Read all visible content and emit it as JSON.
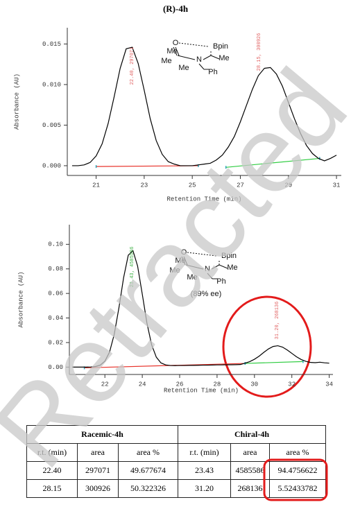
{
  "title": "(R)-4h",
  "watermark": "Retracted",
  "chart_data": [
    {
      "type": "line",
      "xlabel": "Retention Time (min)",
      "ylabel": "Absorbance (AU)",
      "xlim": [
        19.8,
        31.2
      ],
      "ylim": [
        -0.0012,
        0.017
      ],
      "xticks": [
        21,
        23,
        25,
        27,
        29,
        31
      ],
      "yticks": [
        {
          "value": 0,
          "label": "0.000"
        },
        0.005,
        {
          "value": 0.01,
          "label": "0.010"
        },
        0.015
      ],
      "x": [
        20,
        20.25,
        20.5,
        20.75,
        21,
        21.25,
        21.5,
        21.75,
        22,
        22.25,
        22.5,
        22.75,
        23,
        23.25,
        23.5,
        23.75,
        24,
        24.25,
        24.5,
        24.75,
        25,
        25.25,
        25.5,
        25.75,
        26,
        26.25,
        26.5,
        26.75,
        27,
        27.25,
        27.5,
        27.75,
        28,
        28.25,
        28.5,
        28.75,
        29,
        29.25,
        29.5,
        29.75,
        30,
        30.25,
        30.5,
        30.75,
        31
      ],
      "series": [
        {
          "color": "#000000",
          "values": [
            0,
            0,
            0.0001,
            0.0004,
            0.0012,
            0.0027,
            0.0052,
            0.0085,
            0.012,
            0.0144,
            0.0146,
            0.0126,
            0.0093,
            0.0058,
            0.0031,
            0.0014,
            0.0005,
            0.0002,
            0,
            0,
            0,
            0.0001,
            0.0002,
            0.0003,
            0.0007,
            0.0013,
            0.0023,
            0.0036,
            0.0054,
            0.0074,
            0.0094,
            0.0111,
            0.012,
            0.0121,
            0.0113,
            0.0098,
            0.0078,
            0.0058,
            0.004,
            0.0025,
            0.0015,
            0.0009,
            0.0006,
            0.0009,
            0.0013
          ]
        }
      ],
      "baselines": [
        {
          "color": "#e8322a",
          "x": [
            21,
            25.25
          ],
          "values": [
            -0.0001,
            0
          ]
        },
        {
          "color": "#2ecc40",
          "x": [
            26.4,
            30.3
          ],
          "values": [
            -0.0002,
            0.0009
          ]
        }
      ],
      "annotations": [
        {
          "text": "22.40, 297071",
          "color": "#e06060"
        },
        {
          "text": "28.15, 300926",
          "color": "#e06060"
        }
      ]
    },
    {
      "type": "line",
      "xlabel": "Retention Time (min)",
      "ylabel": "Absorbance (AU)",
      "xlim": [
        20.1,
        34.2
      ],
      "ylim": [
        -0.006,
        0.116
      ],
      "xticks": [
        22,
        24,
        26,
        28,
        30,
        32,
        34
      ],
      "yticks": [
        {
          "value": 0,
          "label": "0.00"
        },
        0.02,
        0.04,
        0.06,
        0.08,
        {
          "value": 0.1,
          "label": "0.10"
        }
      ],
      "x": [
        20.25,
        20.5,
        20.75,
        21,
        21.25,
        21.5,
        21.75,
        22,
        22.25,
        22.5,
        22.75,
        23,
        23.25,
        23.5,
        23.75,
        24,
        24.25,
        24.5,
        24.75,
        25,
        25.25,
        25.5,
        25.75,
        26,
        26.25,
        26.5,
        26.75,
        27,
        27.25,
        27.5,
        27.75,
        28,
        28.25,
        28.5,
        28.75,
        29,
        29.25,
        29.5,
        29.75,
        30,
        30.25,
        30.5,
        30.75,
        31,
        31.25,
        31.5,
        31.75,
        32,
        32.25,
        32.5,
        32.75,
        33,
        33.25,
        33.5,
        33.75,
        34
      ],
      "series": [
        {
          "color": "#000000",
          "values": [
            0,
            0,
            0,
            0,
            0.0001,
            0.0005,
            0.0016,
            0.0048,
            0.0123,
            0.0267,
            0.0482,
            0.0727,
            0.0911,
            0.0949,
            0.0823,
            0.0594,
            0.0358,
            0.0182,
            0.0081,
            0.0034,
            0.0018,
            0.0013,
            0.0012,
            0.0013,
            0.0013,
            0.0014,
            0.0014,
            0.0015,
            0.0016,
            0.0016,
            0.0017,
            0.0018,
            0.0018,
            0.0019,
            0.0019,
            0.002,
            0.0021,
            0.0032,
            0.0045,
            0.0064,
            0.0089,
            0.012,
            0.0148,
            0.0168,
            0.0174,
            0.0163,
            0.014,
            0.0112,
            0.0084,
            0.0062,
            0.0047,
            0.0038,
            0.0036,
            0.004,
            0.0035,
            0.0032
          ]
        }
      ],
      "baselines": [
        {
          "color": "#e8322a",
          "x": [
            20.9,
            29.5
          ],
          "values": [
            -0.0006,
            0.003
          ]
        },
        {
          "color": "#2ecc40",
          "x": [
            29.5,
            32.6
          ],
          "values": [
            0.003,
            0.0045
          ]
        }
      ],
      "annotations": [
        {
          "text": "23.43, 4585586",
          "color": "#3cb043"
        },
        {
          "text": "31.20, 268136",
          "color": "#e06060"
        }
      ]
    }
  ],
  "molecules": [
    {
      "labels": [
        "O",
        "Bpin",
        "Me",
        "Me",
        "Me",
        "N",
        "Me",
        "Ph"
      ]
    },
    {
      "labels": [
        "O",
        "Bpin",
        "Me",
        "Me",
        "Me",
        "N",
        "Me",
        "Ph"
      ],
      "ee": "(89% ee)"
    }
  ],
  "table": {
    "groups": [
      "Racemic-4h",
      "Chiral-4h"
    ],
    "columns": [
      "r.t. (min)",
      "area",
      "area %",
      "r.t. (min)",
      "area",
      "area %"
    ],
    "rows": [
      [
        "22.40",
        "297071",
        "49.677674",
        "23.43",
        "4585586",
        "94.4756622"
      ],
      [
        "28.15",
        "300926",
        "50.322326",
        "31.20",
        "268136",
        "5.52433782"
      ]
    ]
  }
}
